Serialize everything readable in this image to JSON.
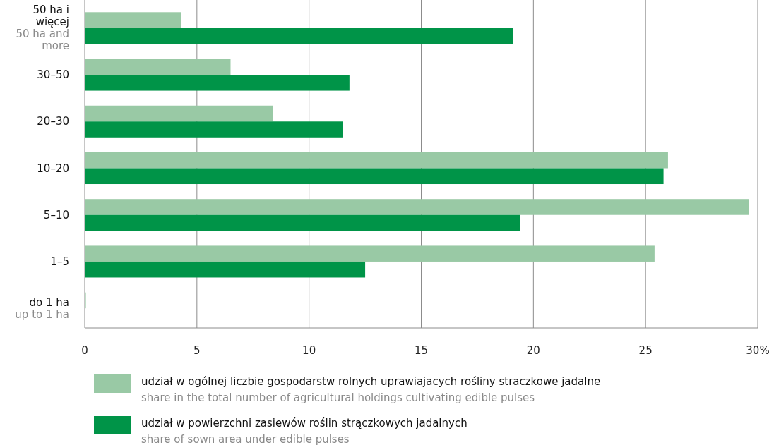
{
  "chart_data": {
    "type": "bar",
    "orientation": "horizontal",
    "categories": [
      "50 ha i więcej\n50 ha and more",
      "30–50",
      "20–30",
      "10–20",
      "5–10",
      "1–5",
      "do 1 ha\nup to 1 ha"
    ],
    "series": [
      {
        "name": "udział w ogólnej liczbie gospodarstw rolnych uprawiajacych rośliny straczkowe jadalne\nshare in the total number of agricultural holdings cultivating edible pulses",
        "color": "#99c9a5",
        "values": [
          4.3,
          6.5,
          8.4,
          26.0,
          29.6,
          25.4,
          0.05
        ]
      },
      {
        "name": "udział w powierzchni zasiewów roślin strączkowych jadalnych\nshare of sown area under edible pulses",
        "color": "#009448",
        "values": [
          19.1,
          11.8,
          11.5,
          25.8,
          19.4,
          12.5,
          0.03
        ]
      }
    ],
    "xlim": [
      0,
      30
    ],
    "xticks": [
      0,
      5,
      10,
      15,
      20,
      25,
      {
        "value": 30,
        "label": "30%"
      }
    ],
    "grid": "x",
    "legend": "bottom"
  }
}
